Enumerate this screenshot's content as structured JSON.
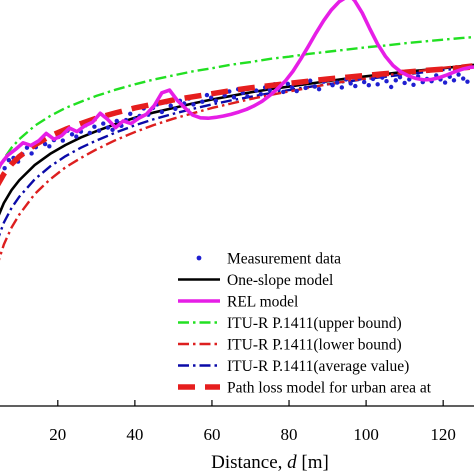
{
  "chart_data": {
    "type": "line",
    "xlabel_prefix": "Distance, ",
    "xlabel_var": "d",
    "xlabel_unit": " [m]",
    "xlim": [
      5,
      128
    ],
    "ylim": [
      82,
      173
    ],
    "xticks": [
      20,
      40,
      60,
      80,
      100,
      120
    ],
    "legend_position": "bottom-right",
    "grid": false,
    "series": [
      {
        "name": "Measurement data",
        "style": "points",
        "color": "#1f1fd1",
        "x": [
          5.0,
          6.2,
          7.3,
          8.5,
          9.7,
          10.8,
          12.0,
          13.2,
          14.3,
          15.5,
          16.7,
          17.8,
          19.0,
          20.2,
          21.3,
          22.5,
          23.7,
          24.8,
          26.0,
          27.2,
          28.3,
          29.5,
          30.7,
          31.8,
          33.0,
          34.2,
          35.3,
          36.5,
          37.7,
          38.8,
          40.0,
          41.2,
          42.3,
          43.5,
          44.7,
          45.8,
          47.0,
          48.2,
          49.3,
          50.5,
          51.7,
          52.8,
          54.0,
          55.2,
          56.3,
          57.5,
          58.7,
          59.8,
          61.0,
          62.2,
          63.3,
          64.5,
          65.7,
          66.8,
          68.0,
          69.2,
          70.3,
          71.5,
          72.7,
          73.8,
          75.0,
          76.2,
          77.3,
          78.5,
          79.7,
          80.8,
          82.0,
          83.2,
          84.3,
          85.5,
          86.7,
          87.8,
          89.0,
          90.2,
          91.3,
          92.5,
          93.7,
          94.8,
          96.0,
          97.2,
          98.3,
          99.5,
          100.7,
          101.8,
          103.0,
          104.2,
          105.3,
          106.5,
          107.7,
          108.8,
          110.0,
          111.2,
          112.3,
          113.5,
          114.7,
          115.8,
          117.0,
          118.2,
          119.3,
          120.5,
          121.7,
          122.8,
          124.0,
          125.2,
          126.3
        ],
        "y": [
          133.2,
          135.3,
          137.1,
          137.6,
          136.8,
          138.4,
          139.9,
          138.6,
          140.0,
          141.4,
          140.7,
          140.2,
          141.6,
          142.3,
          141.5,
          143.7,
          142.9,
          142.4,
          143.5,
          144.9,
          143.2,
          144.6,
          143.7,
          145.3,
          144.4,
          143.9,
          145.9,
          144.8,
          146.1,
          147.5,
          146.3,
          147.0,
          148.7,
          147.3,
          148.8,
          149.6,
          147.9,
          150.1,
          149.3,
          148.6,
          150.4,
          149.8,
          150.9,
          149.6,
          151.5,
          150.2,
          151.7,
          151.1,
          150.4,
          152.3,
          151.6,
          152.5,
          151.2,
          153.0,
          152.2,
          151.4,
          153.3,
          152.7,
          151.9,
          153.4,
          152.8,
          154.1,
          153.0,
          152.4,
          154.2,
          153.5,
          152.6,
          154.4,
          153.3,
          154.9,
          153.6,
          153.0,
          154.7,
          155.1,
          153.9,
          154.5,
          153.4,
          155.2,
          154.3,
          153.7,
          155.4,
          154.6,
          153.9,
          155.3,
          154.1,
          155.6,
          154.8,
          153.5,
          155.0,
          155.7,
          154.4,
          155.2,
          154.0,
          155.9,
          154.6,
          155.3,
          154.8,
          156.1,
          155.2,
          154.5,
          155.8,
          155.0,
          156.3,
          155.4,
          154.7
        ]
      },
      {
        "name": "One-slope model",
        "style": "solid",
        "color": "#000000",
        "x": [
          4,
          6,
          8,
          10,
          14,
          18,
          22,
          26,
          30,
          35,
          40,
          45,
          50,
          55,
          60,
          65,
          70,
          75,
          80,
          85,
          90,
          95,
          100,
          105,
          110,
          115,
          120,
          125,
          130
        ],
        "y": [
          123.4,
          127.5,
          130.4,
          132.6,
          136.0,
          138.5,
          140.5,
          142.2,
          143.6,
          145.2,
          146.6,
          147.8,
          148.8,
          149.8,
          150.7,
          151.5,
          152.3,
          153.0,
          153.6,
          154.2,
          154.8,
          155.4,
          155.9,
          156.4,
          156.9,
          157.3,
          157.7,
          158.2,
          158.6
        ]
      },
      {
        "name": "REL model",
        "style": "solid-thick",
        "color": "#e61ee6",
        "x": [
          4,
          5,
          7,
          9,
          11,
          13,
          15,
          17,
          19,
          21,
          23,
          25,
          27,
          29,
          31,
          33,
          35,
          37,
          39,
          41,
          43,
          45,
          47,
          49,
          51,
          53,
          55,
          57,
          59,
          61,
          63,
          65,
          67,
          69,
          71,
          73,
          75,
          77,
          79,
          81,
          83,
          85,
          87,
          89,
          91,
          93,
          95,
          96,
          97,
          99,
          101,
          103,
          105,
          107,
          109,
          111,
          113,
          115,
          117,
          119,
          121,
          123,
          125,
          127,
          130
        ],
        "y": [
          134.2,
          136.0,
          138.2,
          139.5,
          141.0,
          140.4,
          141.4,
          143.1,
          141.8,
          142.6,
          144.3,
          143.5,
          144.8,
          145.6,
          147.6,
          146.2,
          144.4,
          145.9,
          145.3,
          146.5,
          147.4,
          149.3,
          152.2,
          152.8,
          150.5,
          148.8,
          147.2,
          146.6,
          146.5,
          146.7,
          147.0,
          147.4,
          147.9,
          148.5,
          149.3,
          150.3,
          151.6,
          153.1,
          154.8,
          157.0,
          159.7,
          162.6,
          165.6,
          168.4,
          170.8,
          172.6,
          173.7,
          173.8,
          172.9,
          170.1,
          166.5,
          163.1,
          160.4,
          158.3,
          156.9,
          156.0,
          155.4,
          155.1,
          155.2,
          155.6,
          156.2,
          156.9,
          157.5,
          157.9,
          158.1
        ]
      },
      {
        "name": "ITU-R P.1411(upper bound)",
        "style": "dash-dot",
        "color": "#22e022",
        "x": [
          4,
          6,
          8,
          10,
          14,
          18,
          22,
          26,
          30,
          35,
          40,
          45,
          50,
          55,
          60,
          65,
          70,
          75,
          80,
          85,
          90,
          95,
          100,
          105,
          110,
          115,
          120,
          125,
          130
        ],
        "y": [
          133.8,
          137.4,
          139.9,
          141.8,
          144.8,
          147.0,
          148.8,
          150.2,
          151.5,
          152.9,
          154.1,
          155.2,
          156.1,
          157.0,
          157.7,
          158.5,
          159.1,
          159.8,
          160.3,
          160.9,
          161.4,
          161.9,
          162.4,
          162.8,
          163.3,
          163.7,
          164.1,
          164.5,
          164.8
        ]
      },
      {
        "name": "ITU-R P.1411(lower bound)",
        "style": "dash-dot",
        "color": "#dd1f1f",
        "x": [
          4,
          6,
          8,
          10,
          14,
          18,
          22,
          26,
          30,
          35,
          40,
          45,
          50,
          55,
          60,
          65,
          70,
          75,
          80,
          85,
          90,
          95,
          100,
          105,
          110,
          115,
          120,
          125,
          130
        ],
        "y": [
          112.8,
          118.2,
          122.0,
          124.9,
          129.5,
          132.8,
          135.5,
          137.6,
          139.5,
          141.6,
          143.4,
          145.0,
          146.4,
          147.6,
          148.8,
          149.8,
          150.8,
          151.7,
          152.5,
          153.3,
          154.1,
          154.8,
          155.4,
          156.1,
          156.7,
          157.2,
          157.8,
          158.3,
          158.8
        ]
      },
      {
        "name": "ITU-R P.1411(average value)",
        "style": "dash-dot",
        "color": "#0a0aa8",
        "x": [
          4,
          6,
          8,
          10,
          14,
          18,
          22,
          26,
          30,
          35,
          40,
          45,
          50,
          55,
          60,
          65,
          70,
          75,
          80,
          85,
          90,
          95,
          100,
          105,
          110,
          115,
          120,
          125,
          130
        ],
        "y": [
          118.4,
          123.1,
          126.4,
          128.9,
          132.8,
          135.7,
          138.0,
          139.9,
          141.5,
          143.3,
          144.9,
          146.3,
          147.5,
          148.6,
          149.6,
          150.5,
          151.3,
          152.1,
          152.8,
          153.5,
          154.1,
          154.7,
          155.3,
          155.8,
          156.3,
          156.8,
          157.3,
          157.7,
          158.1
        ]
      },
      {
        "name": "Path loss model for urban area at",
        "style": "dashed-thick",
        "color": "#e61e1e",
        "x": [
          4,
          6,
          8,
          10,
          14,
          18,
          22,
          26,
          30,
          35,
          40,
          45,
          50,
          55,
          60,
          65,
          70,
          75,
          80,
          85,
          90,
          95,
          100,
          105,
          110,
          115,
          120,
          125,
          130
        ],
        "y": [
          131.0,
          134.0,
          136.2,
          137.9,
          140.5,
          142.5,
          144.0,
          145.3,
          146.5,
          147.7,
          148.8,
          149.7,
          150.6,
          151.3,
          152.0,
          152.7,
          153.3,
          153.8,
          154.3,
          154.8,
          155.3,
          155.7,
          156.1,
          156.5,
          156.8,
          157.2,
          157.5,
          157.8,
          158.1
        ]
      }
    ]
  }
}
